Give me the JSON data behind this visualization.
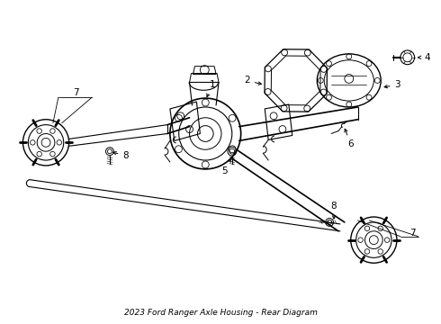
{
  "title": "2023 Ford Ranger Axle Housing - Rear Diagram",
  "bg_color": "#ffffff",
  "line_color": "#000000",
  "fig_width": 4.9,
  "fig_height": 3.6,
  "dpi": 100
}
